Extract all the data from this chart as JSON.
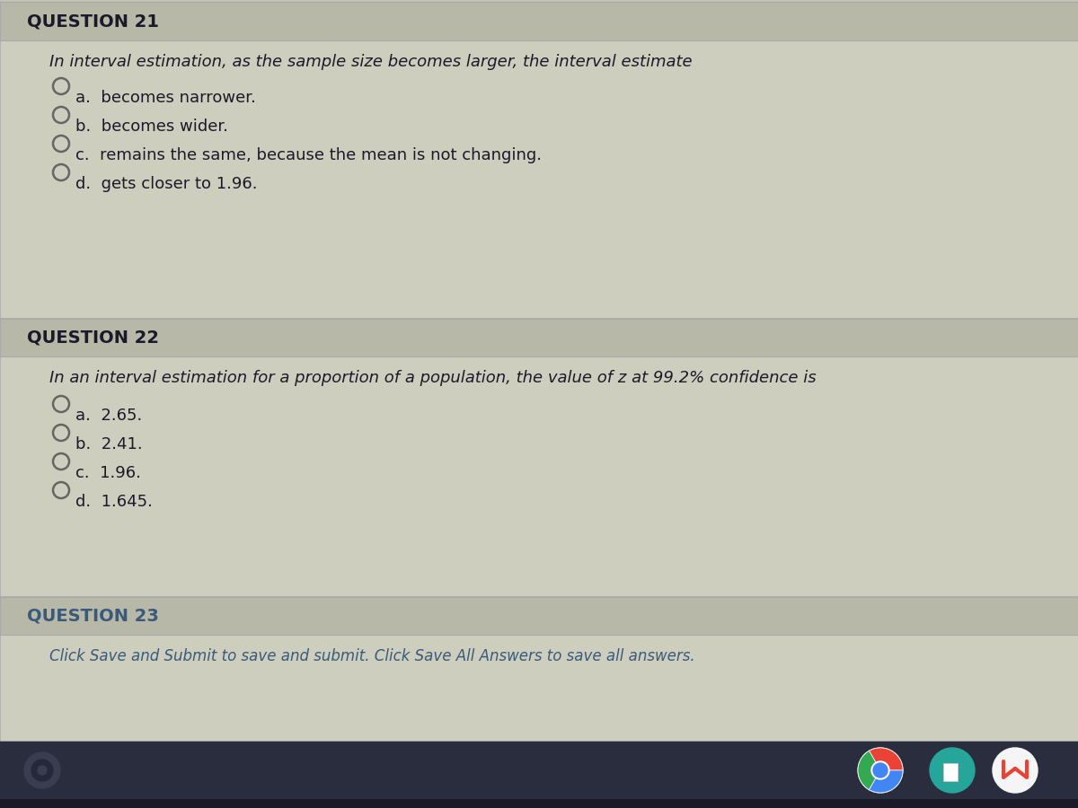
{
  "bg_color": "#c5c5b5",
  "content_bg": "#cecebe",
  "header_bg": "#b8b8a8",
  "taskbar_bg": "#2a2d3e",
  "taskbar_bottom": "#1a1a28",
  "q21_header": "QUESTION 21",
  "q21_question": "In interval estimation, as the sample size becomes larger, the interval estimate",
  "q21_options": [
    "a.  becomes narrower.",
    "b.  becomes wider.",
    "c.  remains the same, because the mean is not changing.",
    "d.  gets closer to 1.96."
  ],
  "q22_header": "QUESTION 22",
  "q22_question": "In an interval estimation for a proportion of a population, the value of z at 99.2% confidence is",
  "q22_options": [
    "a.  2.65.",
    "b.  2.41.",
    "c.  1.96.",
    "d.  1.645."
  ],
  "q23_header": "QUESTION 23",
  "q23_note": "Click Save and Submit to save and submit. Click Save All Answers to save all answers.",
  "header_fontsize": 14,
  "question_fontsize": 13,
  "option_fontsize": 13,
  "note_fontsize": 12,
  "header_color": "#1a1a2a",
  "question_color": "#1a1a2a",
  "option_color": "#1a1a2a",
  "note_color": "#3a5a7a",
  "q23_header_color": "#3a5a7a",
  "divider_color": "#aaaaaa",
  "radio_color": "#666666",
  "border_color": "#aaaaaa"
}
